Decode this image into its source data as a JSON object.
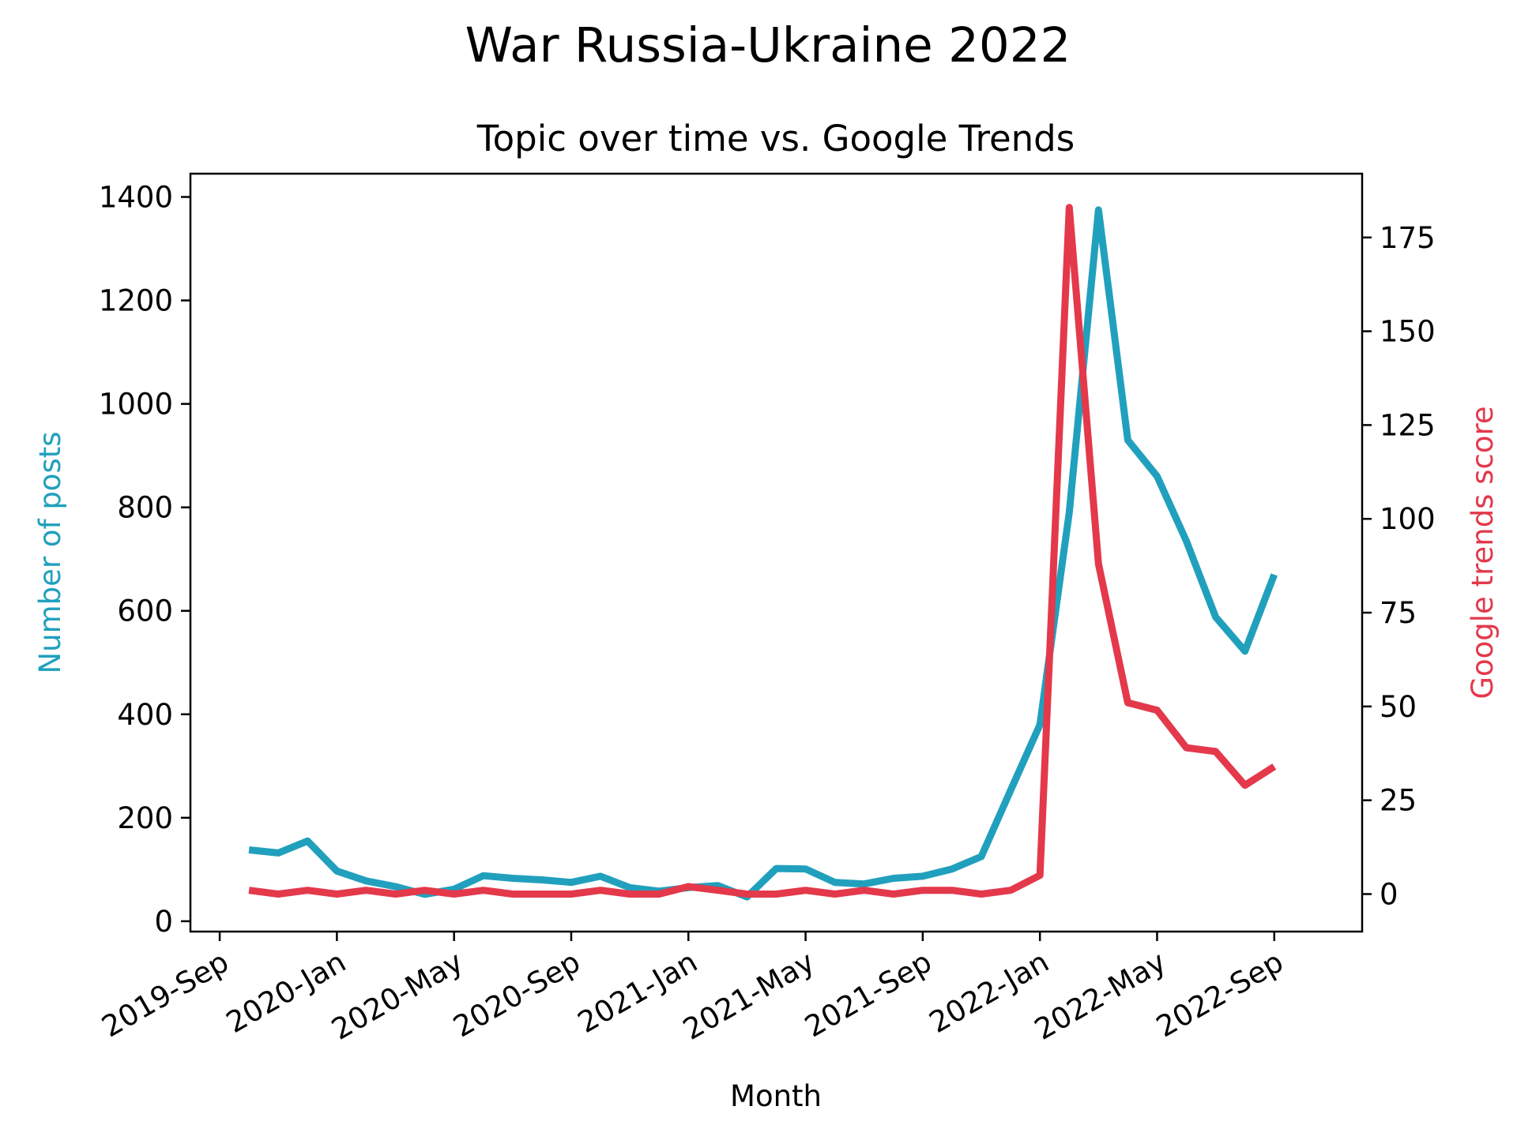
{
  "figure": {
    "suptitle": "War Russia-Ukraine 2022"
  },
  "colors": {
    "posts": "#21a0bd",
    "trends": "#e3394b",
    "axes": "#000000"
  },
  "chart_data": {
    "type": "line",
    "title": "Topic over time vs. Google Trends",
    "xlabel": "Month",
    "ylabel": "Number of posts",
    "ylabel_right": "Google trends score",
    "x_ticks": [
      "2019-Sep",
      "2020-Jan",
      "2020-May",
      "2020-Sep",
      "2021-Jan",
      "2021-May",
      "2021-Sep",
      "2022-Jan",
      "2022-May",
      "2022-Sep"
    ],
    "x_range": [
      "2019-Aug",
      "2022-Dec"
    ],
    "ylim": [
      -20,
      1445
    ],
    "ylim_right": [
      -10,
      192
    ],
    "yticks": [
      0,
      200,
      400,
      600,
      800,
      1000,
      1200,
      1400
    ],
    "yticks_right": [
      0,
      25,
      50,
      75,
      100,
      125,
      150,
      175
    ],
    "legend": "none",
    "grid": false,
    "x": [
      "2019-Oct",
      "2019-Nov",
      "2019-Dec",
      "2020-Jan",
      "2020-Feb",
      "2020-Mar",
      "2020-Apr",
      "2020-May",
      "2020-Jun",
      "2020-Jul",
      "2020-Aug",
      "2020-Sep",
      "2020-Oct",
      "2020-Nov",
      "2020-Dec",
      "2021-Jan",
      "2021-Feb",
      "2021-Mar",
      "2021-Apr",
      "2021-May",
      "2021-Jun",
      "2021-Jul",
      "2021-Aug",
      "2021-Sep",
      "2021-Oct",
      "2021-Nov",
      "2021-Dec",
      "2022-Jan",
      "2022-Feb",
      "2022-Mar",
      "2022-Apr",
      "2022-May",
      "2022-Jun",
      "2022-Jul",
      "2022-Aug",
      "2022-Sep"
    ],
    "series": [
      {
        "name": "Number of posts",
        "axis": "left",
        "values": [
          138,
          132,
          155,
          97,
          78,
          67,
          52,
          62,
          88,
          83,
          80,
          75,
          87,
          65,
          58,
          65,
          69,
          47,
          102,
          101,
          75,
          72,
          83,
          87,
          101,
          125,
          253,
          380,
          790,
          1375,
          930,
          860,
          735,
          588,
          522,
          670
        ]
      },
      {
        "name": "Google trends score",
        "axis": "right",
        "values": [
          1,
          0,
          1,
          0,
          1,
          0,
          1,
          0,
          1,
          0,
          0,
          0,
          1,
          0,
          0,
          2,
          1,
          0,
          0,
          1,
          0,
          1,
          0,
          1,
          1,
          0,
          1,
          5,
          183,
          88,
          51,
          49,
          39,
          38,
          29,
          34
        ]
      }
    ]
  }
}
